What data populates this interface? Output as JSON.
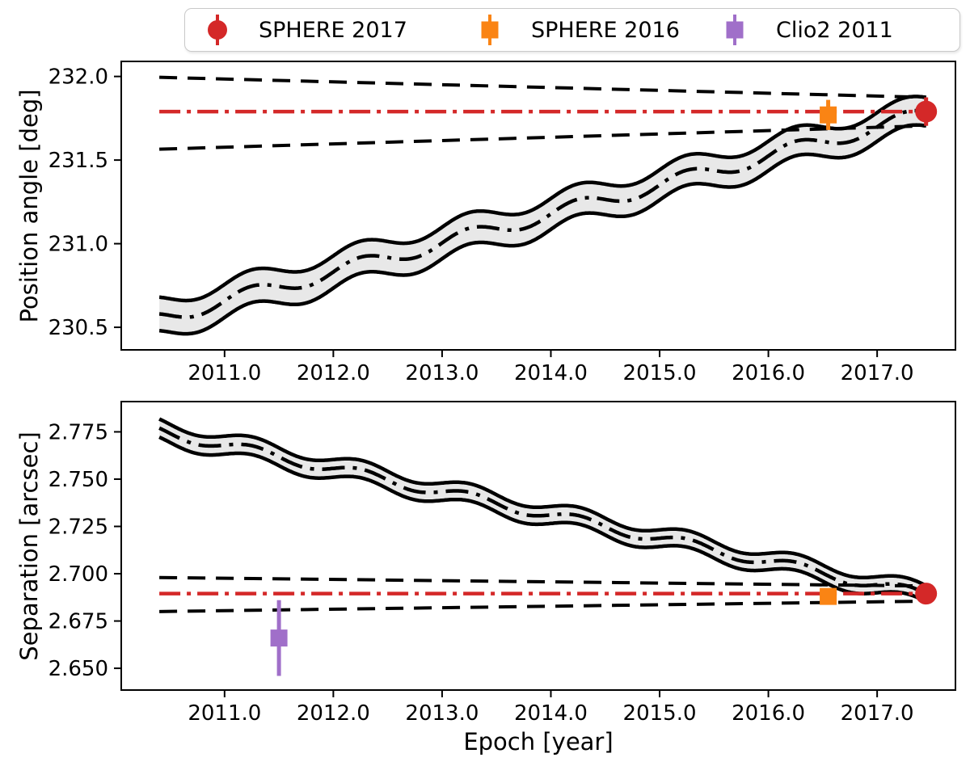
{
  "figure": {
    "colors": {
      "red": "#d42828",
      "orange": "#fa8414",
      "purple": "#a06fc9",
      "black": "#000000",
      "band_fill": "#e8e8e8",
      "legend_border": "#c9c9c9"
    }
  },
  "legend": {
    "position": "top",
    "items": [
      {
        "label": "SPHERE 2017",
        "marker": "circle",
        "color": "red"
      },
      {
        "label": "SPHERE 2016",
        "marker": "square",
        "color": "orange"
      },
      {
        "label": "Clio2 2011",
        "marker": "square",
        "color": "purple"
      }
    ]
  },
  "axis_labels": {
    "top_y": "Position angle [deg]",
    "bottom_y": "Separation [arcsec]",
    "x": "Epoch [year]"
  },
  "chart_data": [
    {
      "type": "line",
      "panel": "position-angle",
      "ylabel": "Position angle [deg]",
      "xlabel": "",
      "xlim": [
        2010.05,
        2017.72
      ],
      "ylim": [
        230.365,
        232.09
      ],
      "xticks": [
        2011.0,
        2012.0,
        2013.0,
        2014.0,
        2015.0,
        2016.0,
        2017.0
      ],
      "xticklabels": [
        "2011.0",
        "2012.0",
        "2013.0",
        "2014.0",
        "2015.0",
        "2016.0",
        "2017.0"
      ],
      "yticks": [
        230.5,
        231.0,
        231.5,
        232.0
      ],
      "yticklabels": [
        "230.5",
        "231.0",
        "231.5",
        "232.0"
      ],
      "grid": false,
      "series": {
        "orbit_band": {
          "name": "companion orbit prediction band (dash-dot center, gray fill, solid edges, annual parallax wiggle)",
          "t_start": 2010.4,
          "t_end": 2017.45,
          "y_start": 230.58,
          "y_end": 231.79,
          "wiggle_amplitude": 0.045,
          "wiggle_period": 1.0,
          "wiggle_phase_year": 2011.0,
          "half_width_start": 0.1,
          "half_width_end": 0.085
        },
        "background_upper_dashed": {
          "name": "background-star track upper envelope",
          "points": [
            [
              2010.4,
              231.995
            ],
            [
              2017.45,
              231.875
            ]
          ]
        },
        "background_lower_dashed": {
          "name": "background-star track lower envelope",
          "points": [
            [
              2010.4,
              231.565
            ],
            [
              2017.45,
              231.705
            ]
          ]
        },
        "reference_line": {
          "name": "constant PA reference (red dash-dot)",
          "y": 231.79,
          "t_start": 2010.4,
          "t_end": 2017.45
        }
      },
      "points": [
        {
          "label": "SPHERE 2016",
          "x": 2016.55,
          "y": 231.77,
          "yerr": 0.09,
          "marker": "square",
          "color": "orange"
        },
        {
          "label": "SPHERE 2017",
          "x": 2017.45,
          "y": 231.79,
          "yerr": 0.085,
          "marker": "circle",
          "color": "red"
        }
      ]
    },
    {
      "type": "line",
      "panel": "separation",
      "ylabel": "Separation [arcsec]",
      "xlabel": "Epoch [year]",
      "xlim": [
        2010.05,
        2017.72
      ],
      "ylim": [
        2.6385,
        2.791
      ],
      "xticks": [
        2011.0,
        2012.0,
        2013.0,
        2014.0,
        2015.0,
        2016.0,
        2017.0
      ],
      "xticklabels": [
        "2011.0",
        "2012.0",
        "2013.0",
        "2014.0",
        "2015.0",
        "2016.0",
        "2017.0"
      ],
      "yticks": [
        2.65,
        2.675,
        2.7,
        2.725,
        2.75,
        2.775
      ],
      "yticklabels": [
        "2.650",
        "2.675",
        "2.700",
        "2.725",
        "2.750",
        "2.775"
      ],
      "grid": false,
      "series": {
        "orbit_band": {
          "name": "companion orbit prediction band (dash-dot center, gray fill, solid edges, annual parallax wiggle)",
          "t_start": 2010.4,
          "t_end": 2017.45,
          "y_start": 2.777,
          "y_end": 2.6895,
          "wiggle_amplitude": 0.0028,
          "wiggle_period": 1.0,
          "wiggle_phase_year": 2011.0,
          "half_width_start": 0.0048,
          "half_width_end": 0.0042
        },
        "background_upper_dashed": {
          "name": "background-star track upper envelope",
          "points": [
            [
              2010.4,
              2.698
            ],
            [
              2017.45,
              2.6935
            ]
          ]
        },
        "background_lower_dashed": {
          "name": "background-star track lower envelope",
          "points": [
            [
              2010.4,
              2.68
            ],
            [
              2017.45,
              2.6855
            ]
          ]
        },
        "reference_line": {
          "name": "constant separation reference (red dash-dot)",
          "y": 2.6895,
          "t_start": 2010.4,
          "t_end": 2017.45
        }
      },
      "points": [
        {
          "label": "Clio2 2011",
          "x": 2011.5,
          "y": 2.666,
          "yerr": 0.02,
          "marker": "square",
          "color": "purple"
        },
        {
          "label": "SPHERE 2016",
          "x": 2016.55,
          "y": 2.688,
          "yerr": 0.004,
          "marker": "square",
          "color": "orange"
        },
        {
          "label": "SPHERE 2017",
          "x": 2017.45,
          "y": 2.6895,
          "yerr": 0.004,
          "marker": "circle",
          "color": "red"
        }
      ]
    }
  ]
}
